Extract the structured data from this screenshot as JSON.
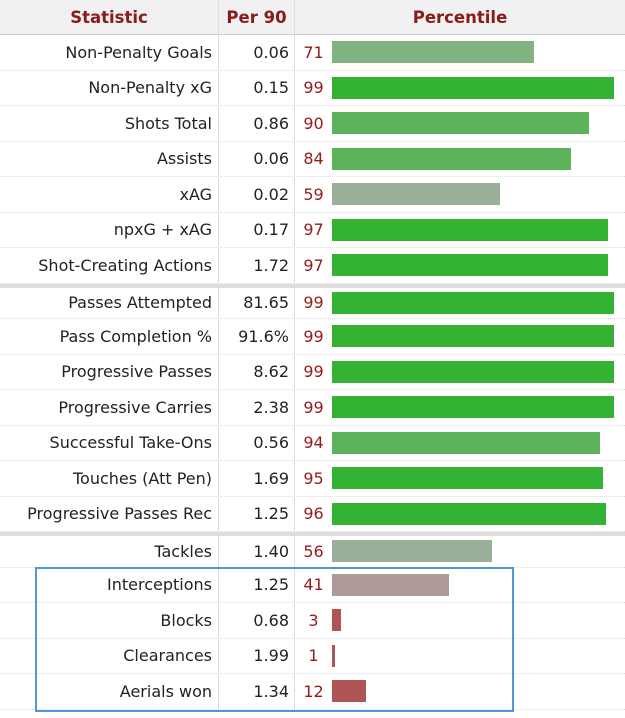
{
  "header": {
    "statistic": "Statistic",
    "per90": "Per 90",
    "percentile": "Percentile"
  },
  "groups": [
    [
      {
        "stat": "Non-Penalty Goals",
        "per90": "0.06",
        "percentile": 71
      },
      {
        "stat": "Non-Penalty xG",
        "per90": "0.15",
        "percentile": 99
      },
      {
        "stat": "Shots Total",
        "per90": "0.86",
        "percentile": 90
      },
      {
        "stat": "Assists",
        "per90": "0.06",
        "percentile": 84
      },
      {
        "stat": "xAG",
        "per90": "0.02",
        "percentile": 59
      },
      {
        "stat": "npxG + xAG",
        "per90": "0.17",
        "percentile": 97
      },
      {
        "stat": "Shot-Creating Actions",
        "per90": "1.72",
        "percentile": 97
      }
    ],
    [
      {
        "stat": "Passes Attempted",
        "per90": "81.65",
        "percentile": 99
      },
      {
        "stat": "Pass Completion %",
        "per90": "91.6%",
        "percentile": 99
      },
      {
        "stat": "Progressive Passes",
        "per90": "8.62",
        "percentile": 99
      },
      {
        "stat": "Progressive Carries",
        "per90": "2.38",
        "percentile": 99
      },
      {
        "stat": "Successful Take-Ons",
        "per90": "0.56",
        "percentile": 94
      },
      {
        "stat": "Touches (Att Pen)",
        "per90": "1.69",
        "percentile": 95
      },
      {
        "stat": "Progressive Passes Rec",
        "per90": "1.25",
        "percentile": 96
      }
    ],
    [
      {
        "stat": "Tackles",
        "per90": "1.40",
        "percentile": 56
      },
      {
        "stat": "Interceptions",
        "per90": "1.25",
        "percentile": 41
      },
      {
        "stat": "Blocks",
        "per90": "0.68",
        "percentile": 3
      },
      {
        "stat": "Clearances",
        "per90": "1.99",
        "percentile": 1
      },
      {
        "stat": "Aerials won",
        "per90": "1.34",
        "percentile": 12
      }
    ]
  ],
  "colors": {
    "elite": "#33b233",
    "very_good": "#5cb35c",
    "good": "#80b380",
    "average": "#9ab09a",
    "below_average": "#b09999",
    "poor": "#b05555"
  }
}
